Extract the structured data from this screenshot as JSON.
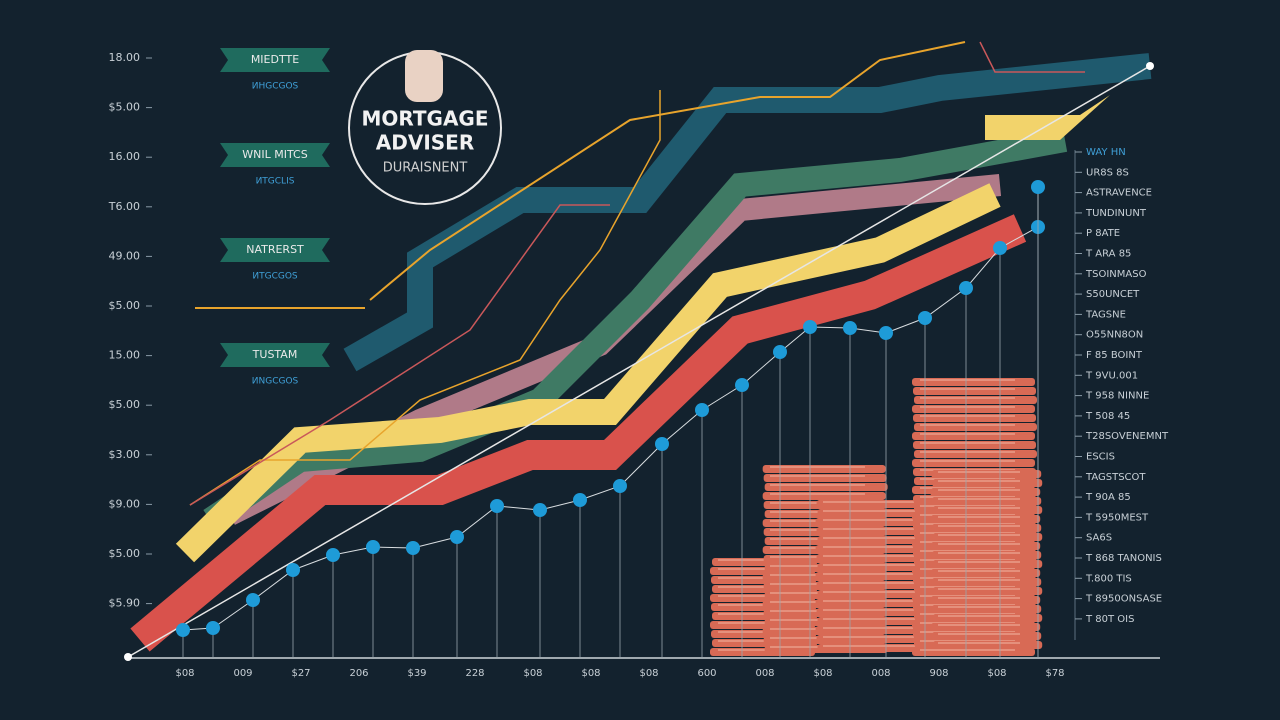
{
  "axis_left": {
    "labels": [
      "18.00",
      "$5.00",
      "16.00",
      "T6.00",
      "49.00",
      "$5.00",
      "15.00",
      "$5.00",
      "$3.00",
      "$9.00",
      "$5.00",
      "$5.90"
    ]
  },
  "badges": [
    {
      "title": "MIEDTTE",
      "subtitle": "ИHGCGOS"
    },
    {
      "title": "WNIL MITCS",
      "subtitle": "ИTGCLIS"
    },
    {
      "title": "NATRERST",
      "subtitle": "ИTGCGOS"
    },
    {
      "title": "TUSTAM",
      "subtitle": "ИNGCGOS"
    }
  ],
  "logo": {
    "line1": "MORTGAGE",
    "line2": "ADVISER",
    "line3": "DURAISNENT"
  },
  "axis_right": {
    "labels": [
      "WAY HN",
      "UR8S 8S",
      "ASTRAVENCE",
      "TUNDINUNT",
      "P 8ATE",
      "T ARA 85",
      "TSOINMASO",
      "S50UNCET",
      "TAGSNE",
      "O55NN8ON",
      "F 85 BOINT",
      "T 9VU.001",
      "T 958 NINNE",
      "T 508 45",
      "T28SOVENEMNT",
      "ESCIS",
      "TAGSTSCOT",
      "T 90A 85",
      "T 5950MEST",
      "SA6S",
      "T 868 TANONIS",
      "T.800 TIS",
      "T 8950ONSASE",
      "T 80T OIS"
    ]
  },
  "axis_bottom": {
    "labels": [
      "$08",
      "009",
      "$27",
      "206",
      "$39",
      "228",
      "$08",
      "$08",
      "$08",
      "600",
      "008",
      "$08",
      "008",
      "908",
      "$08",
      "$78"
    ]
  }
}
